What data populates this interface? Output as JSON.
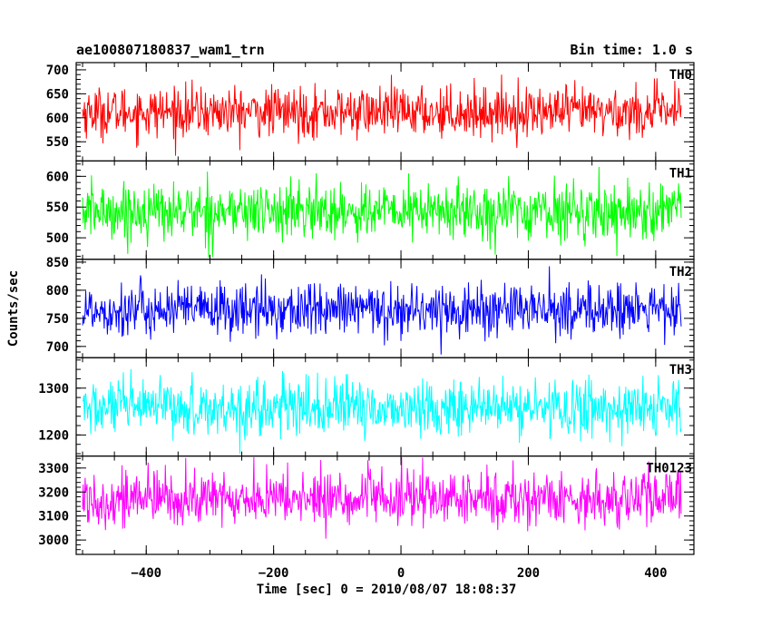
{
  "chart_data": {
    "type": "line",
    "title": "ae100807180837_wam1_trn",
    "bin_time_label": "Bin time: 1.0 s",
    "xlabel": "Time [sec] 0 = 2010/08/07 18:08:37",
    "ylabel": "Counts/sec",
    "xlim": [
      -510,
      460
    ],
    "x_data_range": [
      -500,
      440
    ],
    "x_ticks": [
      -400,
      -200,
      0,
      200,
      400
    ],
    "x_tick_labels": [
      "−400",
      "−200",
      "0",
      "200",
      "400"
    ],
    "panels": [
      {
        "name": "TH0",
        "color": "#ff0000",
        "ylim": [
          510,
          715
        ],
        "y_ticks": [
          550,
          600,
          650,
          700
        ],
        "y_tick_labels": [
          "550",
          "600",
          "650",
          "700"
        ],
        "mean": 612,
        "sd": 26,
        "min": 520,
        "max": 710
      },
      {
        "name": "TH1",
        "color": "#00ff00",
        "ylim": [
          465,
          625
        ],
        "y_ticks": [
          500,
          550,
          600
        ],
        "y_tick_labels": [
          "500",
          "550",
          "600"
        ],
        "mean": 543,
        "sd": 23,
        "min": 468,
        "max": 622
      },
      {
        "name": "TH2",
        "color": "#0000ff",
        "ylim": [
          680,
          855
        ],
        "y_ticks": [
          700,
          750,
          800,
          850
        ],
        "y_tick_labels": [
          "700",
          "750",
          "800",
          "850"
        ],
        "mean": 765,
        "sd": 24,
        "min": 685,
        "max": 852
      },
      {
        "name": "TH3",
        "color": "#00ffff",
        "ylim": [
          1155,
          1365
        ],
        "y_ticks": [
          1200,
          1300
        ],
        "y_tick_labels": [
          "1200",
          "1300"
        ],
        "mean": 1257,
        "sd": 30,
        "min": 1160,
        "max": 1362
      },
      {
        "name": "TH0123",
        "color": "#ff00ff",
        "ylim": [
          2940,
          3350
        ],
        "y_ticks": [
          3000,
          3100,
          3200,
          3300
        ],
        "y_tick_labels": [
          "3000",
          "3100",
          "3200",
          "3300"
        ],
        "mean": 3172,
        "sd": 58,
        "min": 2950,
        "max": 3345
      }
    ]
  }
}
